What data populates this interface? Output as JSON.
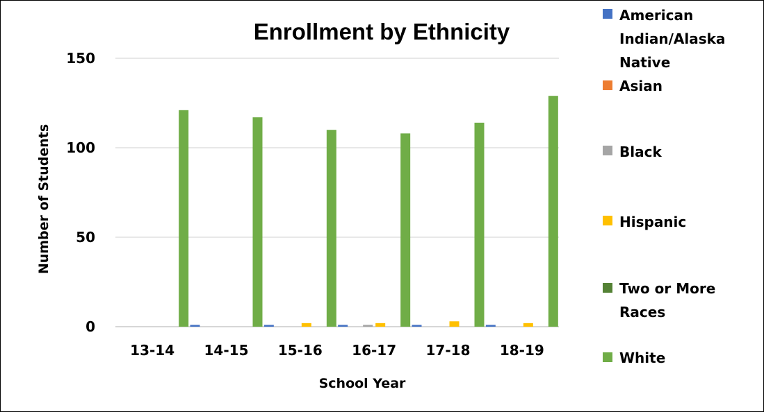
{
  "chart_data": {
    "type": "bar",
    "title": "Enrollment by Ethnicity",
    "xlabel": "School Year",
    "ylabel": "Number of Students",
    "categories": [
      "13-14",
      "14-15",
      "15-16",
      "16-17",
      "17-18",
      "18-19"
    ],
    "ylim": [
      0,
      150
    ],
    "yticks": [
      0,
      50,
      100,
      150
    ],
    "grid": true,
    "legend_position": "right",
    "series": [
      {
        "name": "American Indian/Alaska Native",
        "color": "#4472C4",
        "values": [
          0,
          1,
          1,
          1,
          1,
          1
        ]
      },
      {
        "name": "Asian",
        "color": "#ED7D31",
        "values": [
          0,
          0,
          0,
          0,
          0,
          0
        ]
      },
      {
        "name": "Black",
        "color": "#A5A5A5",
        "values": [
          0,
          0,
          0,
          1,
          0,
          0
        ]
      },
      {
        "name": "Hispanic",
        "color": "#FFC000",
        "values": [
          0,
          0,
          2,
          2,
          3,
          2
        ]
      },
      {
        "name": "Two or More Races",
        "color": "#548235",
        "values": [
          0,
          0,
          0,
          0,
          0,
          0
        ]
      },
      {
        "name": "White",
        "color": "#70AD47",
        "values": [
          121,
          117,
          110,
          108,
          114,
          129
        ]
      }
    ]
  }
}
